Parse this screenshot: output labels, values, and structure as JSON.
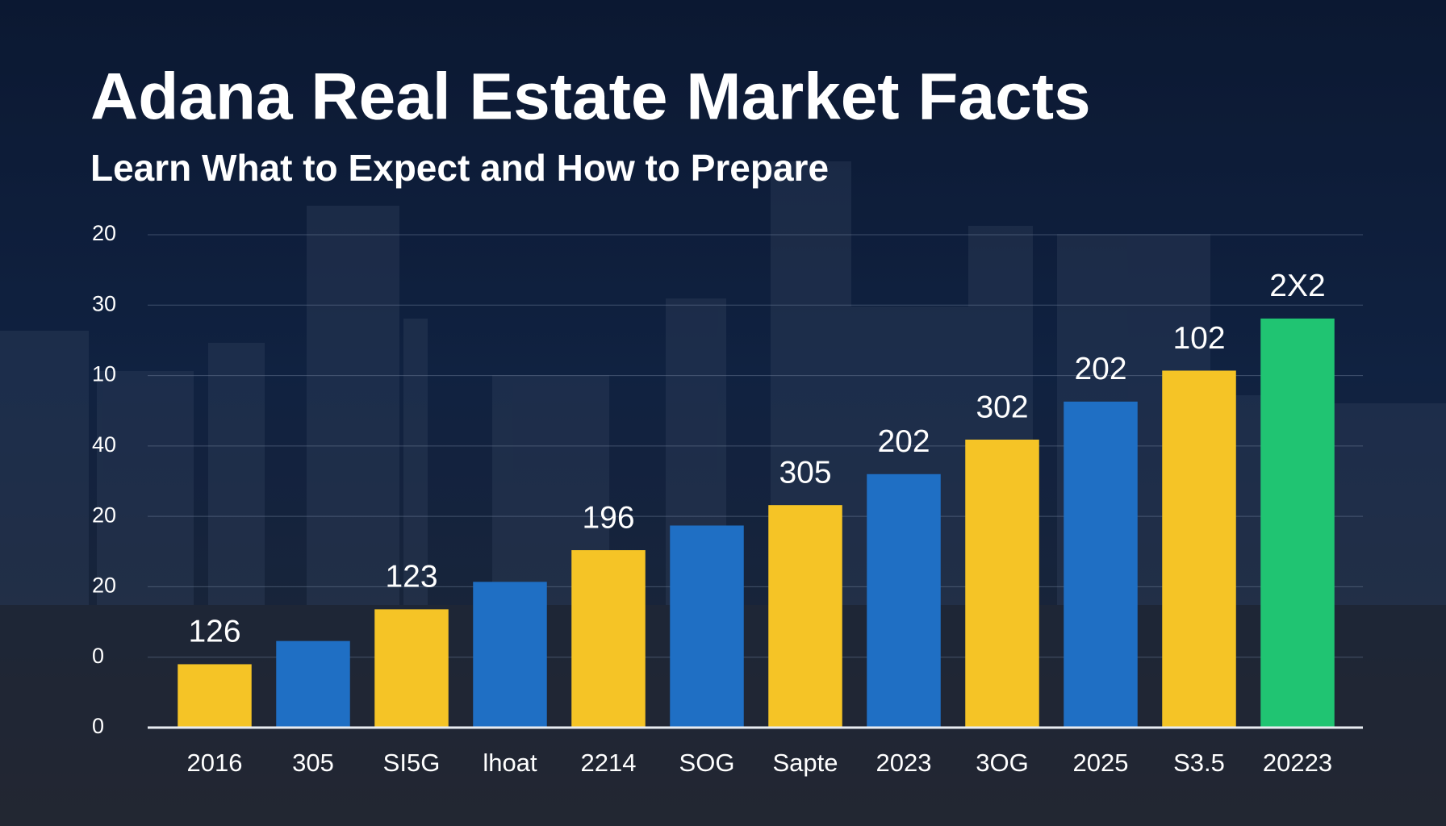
{
  "chart_data": {
    "type": "bar",
    "title": "Adana Real Estate Market Facts",
    "subtitle": "Learn What to Expect and How to Prepare",
    "categories": [
      "2016",
      "305",
      "SI5G",
      "lhoat",
      "2214",
      "SOG",
      "Sapte",
      "2023",
      "3OG",
      "2025",
      "S3.5",
      "20223"
    ],
    "values": [
      0.9,
      1.23,
      1.68,
      2.07,
      2.52,
      2.87,
      3.16,
      3.6,
      4.09,
      4.63,
      5.07,
      5.81
    ],
    "colors": [
      "#f5c426",
      "#1f6fc4",
      "#f5c426",
      "#1f6fc4",
      "#f5c426",
      "#1f6fc4",
      "#f5c426",
      "#1f6fc4",
      "#f5c426",
      "#1f6fc4",
      "#f5c426",
      "#20c472"
    ],
    "annotations": [
      "126",
      null,
      "123",
      null,
      "196",
      null,
      "305",
      "202",
      "302",
      "202",
      "102",
      "2X2"
    ],
    "ylim": [
      0,
      7
    ],
    "yticks": [
      {
        "value": 0,
        "label": "0"
      },
      {
        "value": 1,
        "label": "0"
      },
      {
        "value": 2,
        "label": "20"
      },
      {
        "value": 3,
        "label": "20"
      },
      {
        "value": 4,
        "label": "40"
      },
      {
        "value": 5,
        "label": "10"
      },
      {
        "value": 6,
        "label": "30"
      },
      {
        "value": 7,
        "label": "20"
      }
    ],
    "grid": true
  }
}
